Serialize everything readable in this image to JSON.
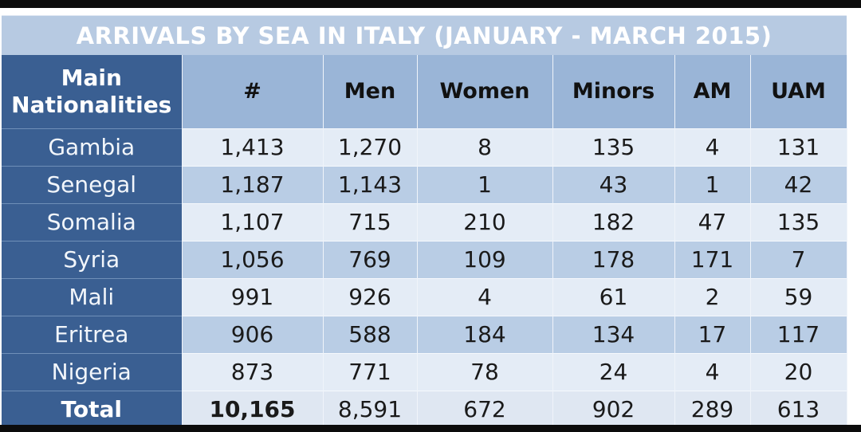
{
  "chart_data": {
    "type": "table",
    "title": "ARRIVALS BY SEA IN ITALY (JANUARY - MARCH 2015)",
    "columns": [
      "Main Nationalities",
      "#",
      "Men",
      "Women",
      "Minors",
      "AM",
      "UAM"
    ],
    "rows": [
      [
        "Gambia",
        "1,413",
        "1,270",
        "8",
        "135",
        "4",
        "131"
      ],
      [
        "Senegal",
        "1,187",
        "1,143",
        "1",
        "43",
        "1",
        "42"
      ],
      [
        "Somalia",
        "1,107",
        "715",
        "210",
        "182",
        "47",
        "135"
      ],
      [
        "Syria",
        "1,056",
        "769",
        "109",
        "178",
        "171",
        "7"
      ],
      [
        "Mali",
        "991",
        "926",
        "4",
        "61",
        "2",
        "59"
      ],
      [
        "Eritrea",
        "906",
        "588",
        "184",
        "134",
        "17",
        "117"
      ],
      [
        "Nigeria",
        "873",
        "771",
        "78",
        "24",
        "4",
        "20"
      ]
    ],
    "total": [
      "Total",
      "10,165",
      "8,591",
      "672",
      "902",
      "289",
      "613"
    ]
  },
  "colors": {
    "header_dark": "#3a5f92",
    "header_light": "#9ab5d7",
    "title_bar": "#b7cae2",
    "row_light": "#e4ecf6",
    "row_dark": "#b9cde5"
  }
}
